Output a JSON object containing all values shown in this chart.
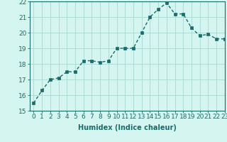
{
  "x": [
    0,
    1,
    2,
    3,
    4,
    5,
    6,
    7,
    8,
    9,
    10,
    11,
    12,
    13,
    14,
    15,
    16,
    17,
    18,
    19,
    20,
    21,
    22,
    23
  ],
  "y": [
    15.5,
    16.3,
    17.0,
    17.1,
    17.5,
    17.5,
    18.2,
    18.2,
    18.1,
    18.2,
    19.0,
    19.0,
    19.0,
    20.0,
    21.0,
    21.5,
    21.9,
    21.2,
    21.2,
    20.3,
    19.8,
    19.9,
    19.6,
    19.6
  ],
  "line_color": "#1a6b6b",
  "marker_color": "#1a6b6b",
  "bg_color": "#d4f5f0",
  "grid_color": "#aad8d3",
  "xlabel": "Humidex (Indice chaleur)",
  "ylim": [
    15,
    22
  ],
  "xlim": [
    -0.5,
    23
  ],
  "yticks": [
    15,
    16,
    17,
    18,
    19,
    20,
    21,
    22
  ],
  "xticks": [
    0,
    1,
    2,
    3,
    4,
    5,
    6,
    7,
    8,
    9,
    10,
    11,
    12,
    13,
    14,
    15,
    16,
    17,
    18,
    19,
    20,
    21,
    22,
    23
  ],
  "xlabel_fontsize": 7,
  "tick_fontsize": 6.5,
  "line_width": 1.0,
  "marker_size": 2.5
}
